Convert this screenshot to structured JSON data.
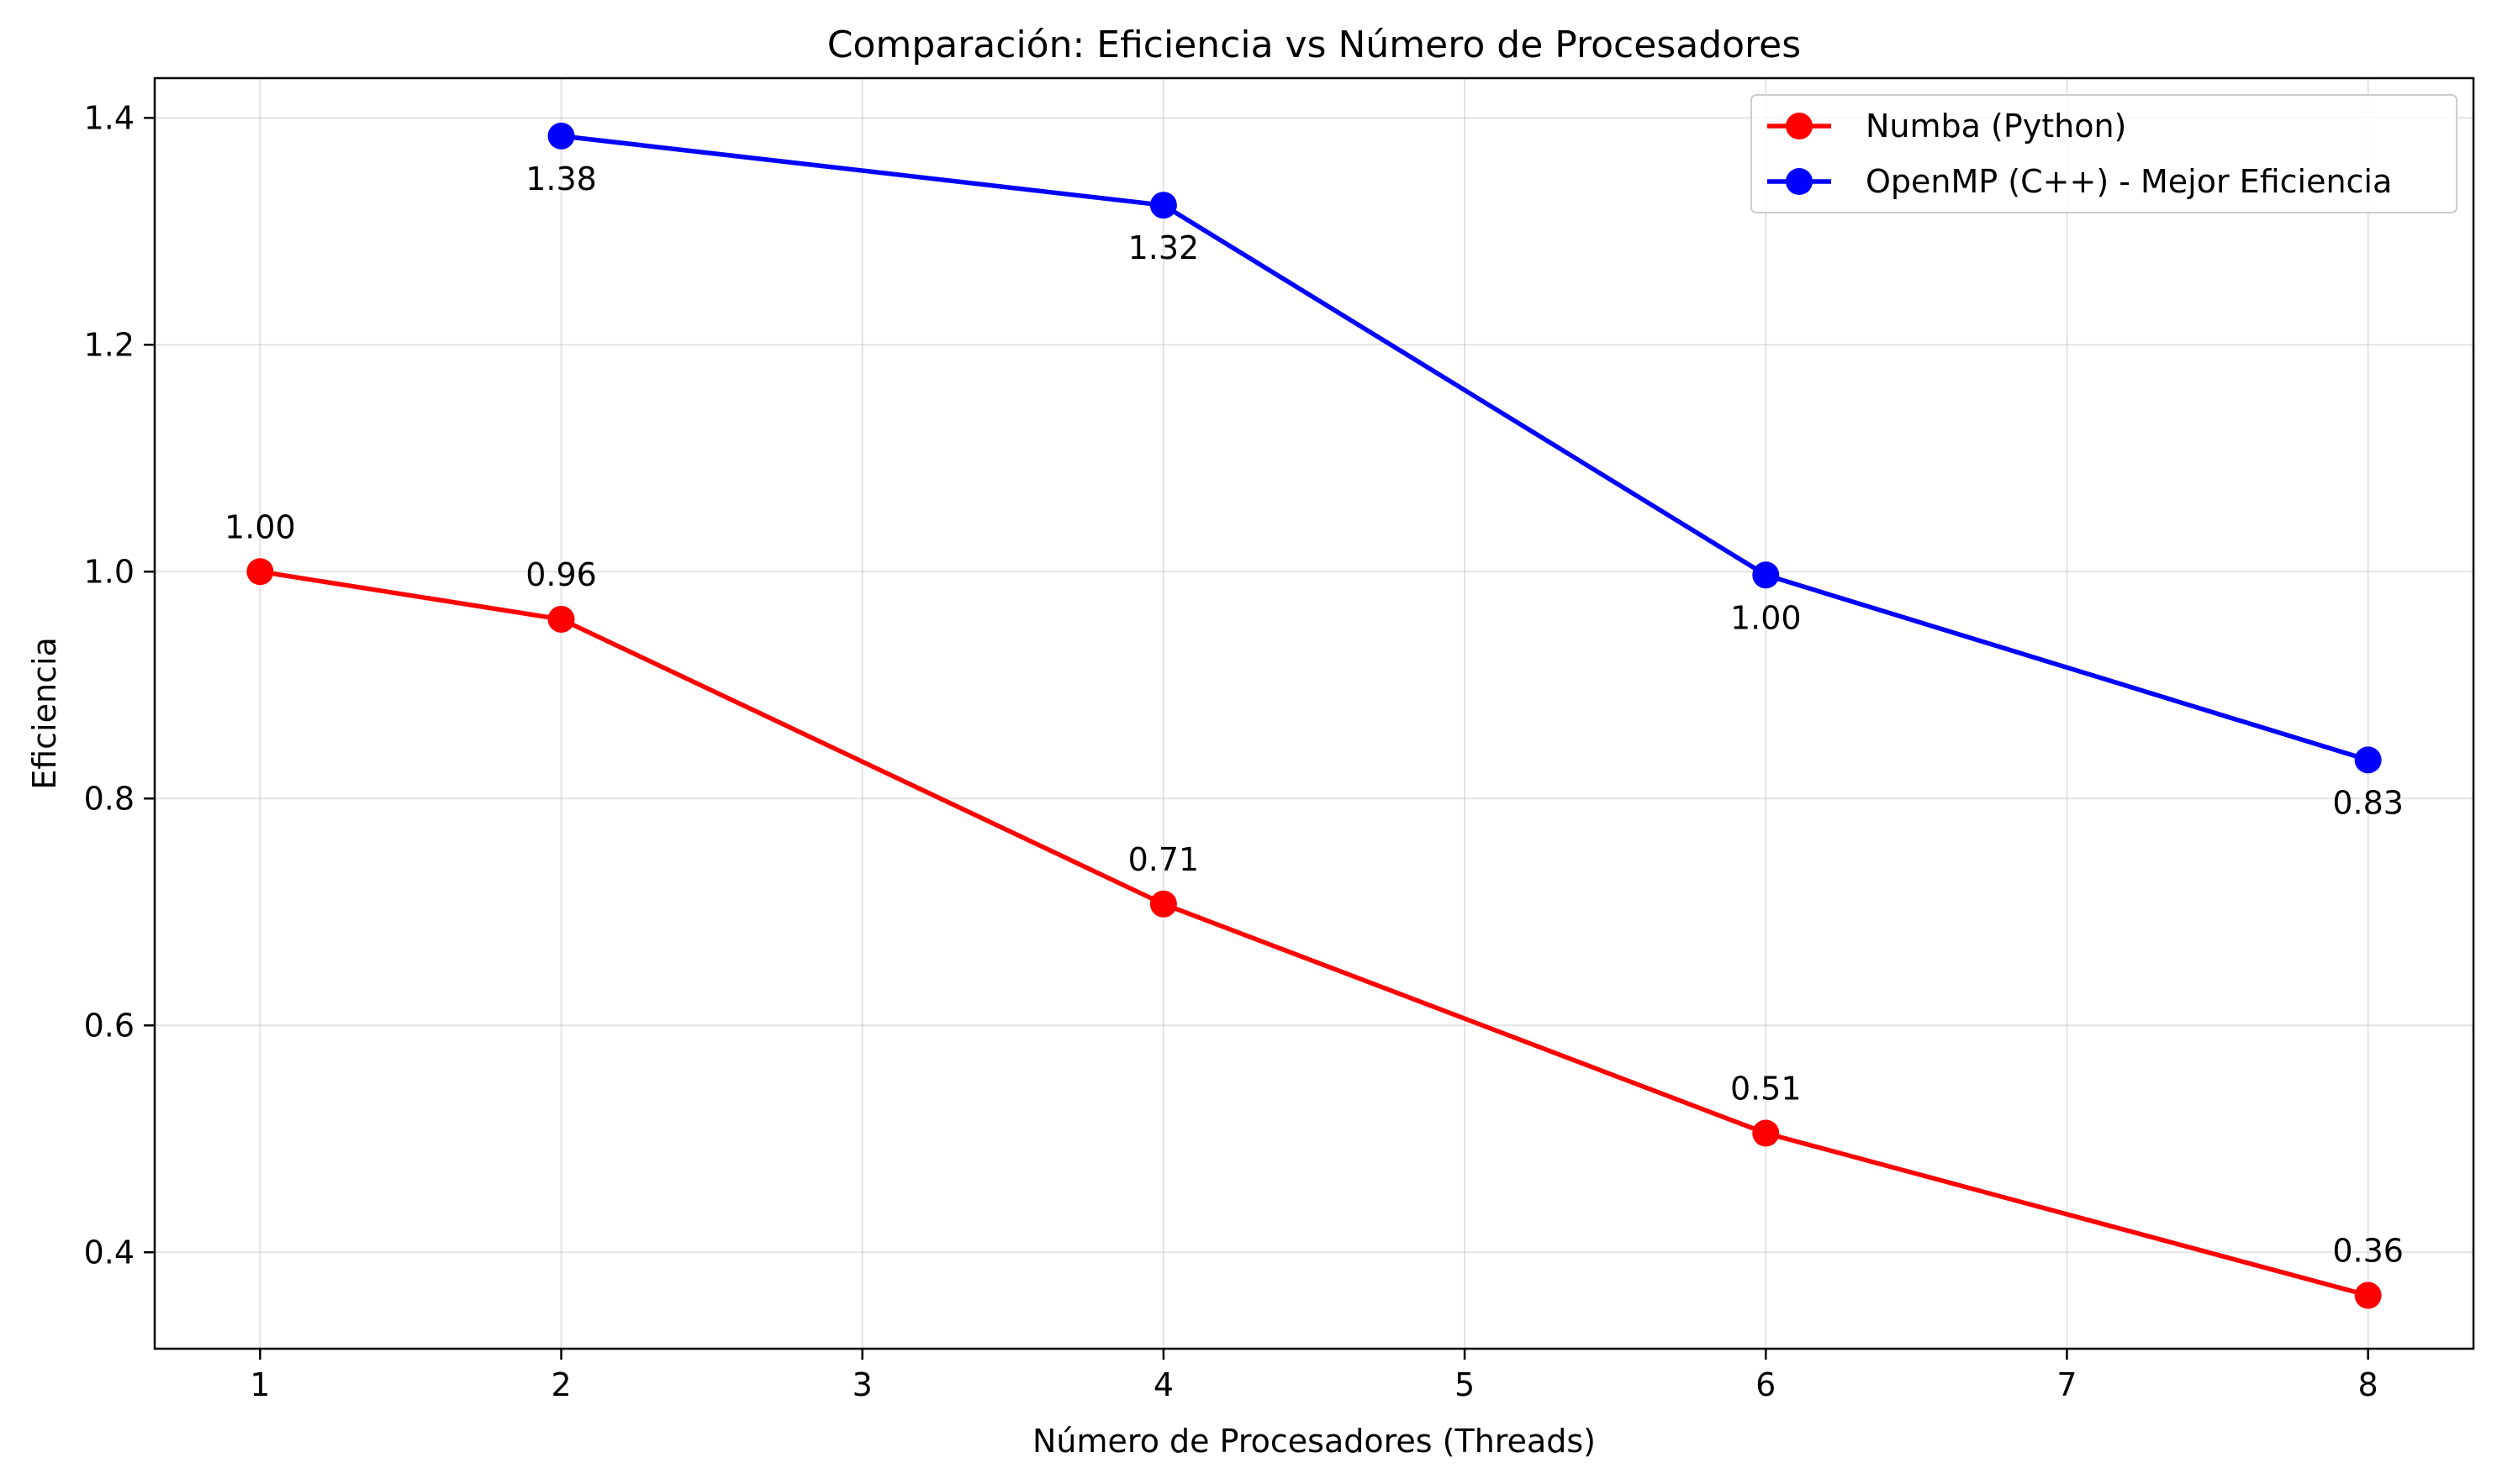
{
  "chart_data": {
    "type": "line",
    "title": "Comparación: Eficiencia vs Número de Procesadores",
    "xlabel": "Número de Procesadores (Threads)",
    "ylabel": "Eficiencia",
    "xlim": [
      0.65,
      8.35
    ],
    "ylim": [
      0.315,
      1.435
    ],
    "xticks": [
      1,
      2,
      3,
      4,
      5,
      6,
      7,
      8
    ],
    "yticks": [
      0.4,
      0.6,
      0.8,
      1.0,
      1.2,
      1.4
    ],
    "ytick_labels": [
      "0.4",
      "0.6",
      "0.8",
      "1.0",
      "1.2",
      "1.4"
    ],
    "grid": true,
    "legend_position": "top-right",
    "series": [
      {
        "name": "Numba (Python)",
        "color": "#ff0000",
        "marker": "circle",
        "label_position": "above",
        "x": [
          1,
          2,
          4,
          6,
          8
        ],
        "y": [
          1.0,
          0.958,
          0.707,
          0.505,
          0.362
        ],
        "labels": [
          "1.00",
          "0.96",
          "0.71",
          "0.51",
          "0.36"
        ]
      },
      {
        "name": "OpenMP (C++) - Mejor Eficiencia",
        "color": "#0000ff",
        "marker": "circle",
        "label_position": "below",
        "x": [
          2,
          4,
          6,
          8
        ],
        "y": [
          1.384,
          1.323,
          0.997,
          0.834
        ],
        "labels": [
          "1.38",
          "1.32",
          "1.00",
          "0.83"
        ]
      }
    ]
  }
}
